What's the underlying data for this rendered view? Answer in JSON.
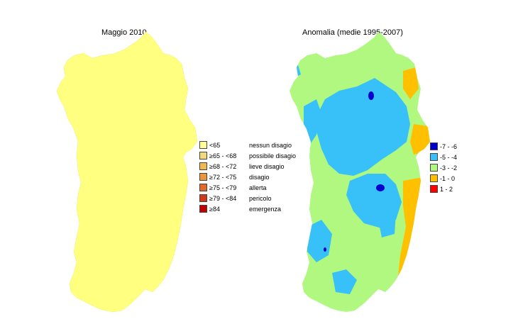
{
  "left_panel": {
    "title": "Maggio 2010",
    "fill_color": "#ffff80",
    "legend": [
      {
        "range": "<65",
        "label": "nessun disagio",
        "color": "#ffff99"
      },
      {
        "range": "≥65 - <68",
        "label": "possibile disagio",
        "color": "#f2d878"
      },
      {
        "range": "≥68 - <72",
        "label": "lieve disagio",
        "color": "#efb950"
      },
      {
        "range": "≥72 - <75",
        "label": "disagio",
        "color": "#e9963c"
      },
      {
        "range": "≥75 - <79",
        "label": "allerta",
        "color": "#e06a2c"
      },
      {
        "range": "≥79 - <84",
        "label": "pericolo",
        "color": "#d03a1c"
      },
      {
        "range": "≥84",
        "label": "emergenza",
        "color": "#c00000"
      }
    ]
  },
  "right_panel": {
    "title": "Anomalia (medie 1995-2007)",
    "legend": [
      {
        "label": "-7 - -6",
        "color": "#0000cc"
      },
      {
        "label": "-5 - -4",
        "color": "#38c0f8"
      },
      {
        "label": "-3 - -2",
        "color": "#b0f880"
      },
      {
        "label": "-1 - 0",
        "color": "#ffc000"
      },
      {
        "label": "1 - 2",
        "color": "#ff0000"
      }
    ]
  }
}
